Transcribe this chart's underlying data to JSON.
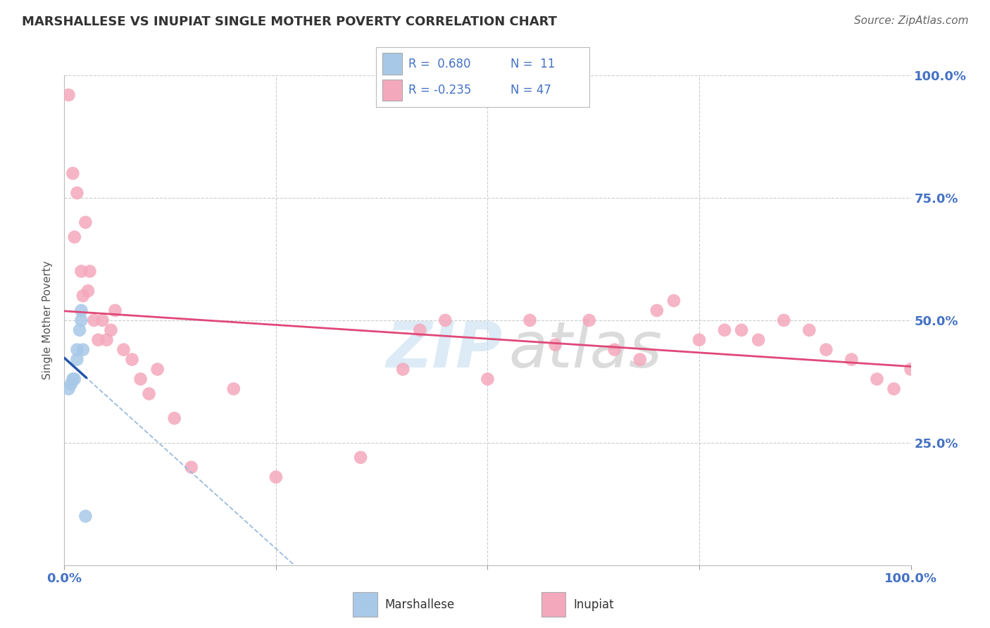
{
  "title": "MARSHALLESE VS INUPIAT SINGLE MOTHER POVERTY CORRELATION CHART",
  "source": "Source: ZipAtlas.com",
  "ylabel": "Single Mother Poverty",
  "watermark_zip": "ZIP",
  "watermark_atlas": "atlas",
  "legend_r1": "R =  0.680",
  "legend_n1": "N =  11",
  "legend_r2": "R = -0.235",
  "legend_n2": "N = 47",
  "marshallese_x": [
    0.005,
    0.008,
    0.01,
    0.012,
    0.015,
    0.015,
    0.018,
    0.02,
    0.02,
    0.022,
    0.025
  ],
  "marshallese_y": [
    0.36,
    0.37,
    0.38,
    0.38,
    0.42,
    0.44,
    0.48,
    0.5,
    0.52,
    0.44,
    0.1
  ],
  "inupiat_x": [
    0.005,
    0.01,
    0.012,
    0.015,
    0.02,
    0.022,
    0.025,
    0.028,
    0.03,
    0.035,
    0.04,
    0.045,
    0.05,
    0.055,
    0.06,
    0.07,
    0.08,
    0.09,
    0.1,
    0.11,
    0.13,
    0.15,
    0.2,
    0.25,
    0.35,
    0.4,
    0.42,
    0.45,
    0.5,
    0.55,
    0.58,
    0.62,
    0.65,
    0.68,
    0.7,
    0.72,
    0.75,
    0.78,
    0.8,
    0.82,
    0.85,
    0.88,
    0.9,
    0.93,
    0.96,
    0.98,
    1.0
  ],
  "inupiat_y": [
    0.96,
    0.8,
    0.67,
    0.76,
    0.6,
    0.55,
    0.7,
    0.56,
    0.6,
    0.5,
    0.46,
    0.5,
    0.46,
    0.48,
    0.52,
    0.44,
    0.42,
    0.38,
    0.35,
    0.4,
    0.3,
    0.2,
    0.36,
    0.18,
    0.22,
    0.4,
    0.48,
    0.5,
    0.38,
    0.5,
    0.45,
    0.5,
    0.44,
    0.42,
    0.52,
    0.54,
    0.46,
    0.48,
    0.48,
    0.46,
    0.5,
    0.48,
    0.44,
    0.42,
    0.38,
    0.36,
    0.4
  ],
  "xmin": 0.0,
  "xmax": 1.0,
  "ymin": 0.0,
  "ymax": 1.0,
  "xticks": [
    0.0,
    0.25,
    0.5,
    0.75,
    1.0
  ],
  "yticks": [
    0.25,
    0.5,
    0.75,
    1.0
  ],
  "xtick_labels": [
    "0.0%",
    "",
    "",
    "",
    "100.0%"
  ],
  "ytick_labels_right": [
    "25.0%",
    "50.0%",
    "75.0%",
    "100.0%"
  ],
  "grid_color": "#cccccc",
  "marshallese_color": "#a8c8e8",
  "inupiat_color": "#f4a8bc",
  "marshallese_line_color": "#2255aa",
  "inupiat_line_color": "#e04878",
  "dashed_line_color": "#99bbdd",
  "background_color": "#ffffff",
  "title_color": "#333333",
  "label_color": "#4472c4",
  "source_color": "#666666"
}
